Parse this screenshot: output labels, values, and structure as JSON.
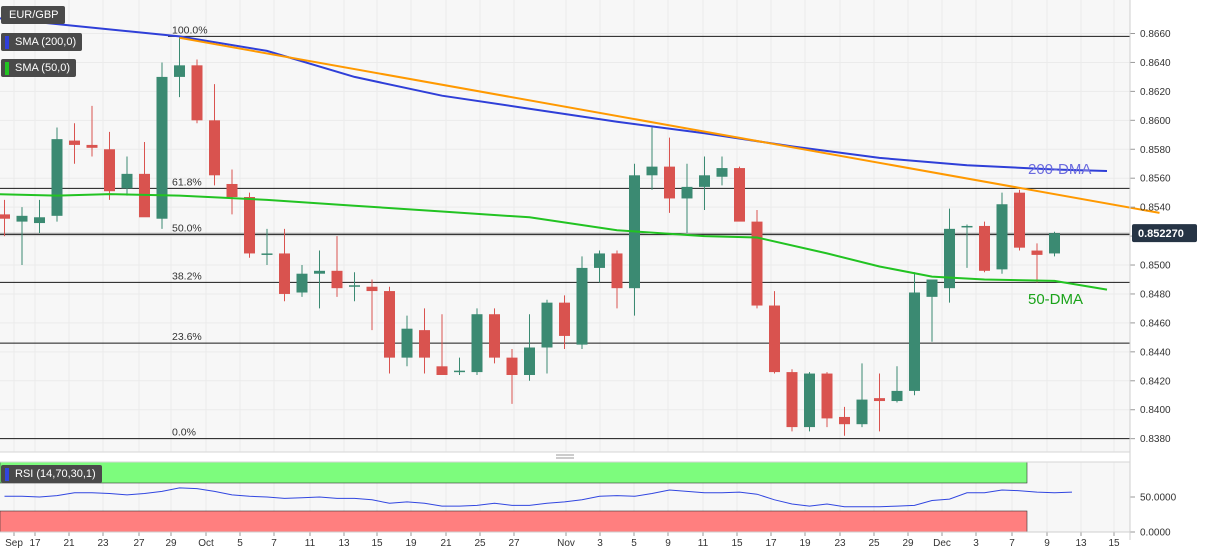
{
  "legend": {
    "symbol": "EUR/GBP",
    "sma200": "SMA (200,0)",
    "sma50": "SMA (50,0)",
    "sma200_color": "#2f3fd8",
    "sma50_color": "#22c322"
  },
  "price_label": "0.852270",
  "rsi_label": "RSI (14,70,30,1)",
  "colors": {
    "up": "#3b8a72",
    "down": "#d9534f",
    "trendline": "#ff9900",
    "rsi_overbought": "#7dfc7d",
    "rsi_oversold": "#ff7f7f",
    "rsi_line": "#3146e0"
  },
  "chart_data": [
    {
      "type": "candlestick",
      "title": "EUR/GBP",
      "ylim": [
        0.837,
        0.868
      ],
      "y_ticks": [
        "0.8660",
        "0.8640",
        "0.8620",
        "0.8600",
        "0.8580",
        "0.8560",
        "0.8540",
        "0.8520",
        "0.8500",
        "0.8480",
        "0.8460",
        "0.8440",
        "0.8420",
        "0.8400",
        "0.8380"
      ],
      "x_ticks": [
        "Sep",
        "17",
        "21",
        "23",
        "27",
        "29",
        "Oct",
        "5",
        "7",
        "11",
        "13",
        "15",
        "19",
        "21",
        "25",
        "27",
        "Nov",
        "3",
        "5",
        "9",
        "11",
        "15",
        "17",
        "19",
        "23",
        "25",
        "29",
        "Dec",
        "3",
        "7",
        "9",
        "13",
        "15"
      ],
      "candles": [
        {
          "o": 0.8535,
          "h": 0.8545,
          "l": 0.852,
          "c": 0.8532
        },
        {
          "o": 0.853,
          "h": 0.854,
          "l": 0.85,
          "c": 0.8534
        },
        {
          "o": 0.8529,
          "h": 0.8545,
          "l": 0.8522,
          "c": 0.8533
        },
        {
          "o": 0.8534,
          "h": 0.8595,
          "l": 0.853,
          "c": 0.8587
        },
        {
          "o": 0.8586,
          "h": 0.8598,
          "l": 0.857,
          "c": 0.8583
        },
        {
          "o": 0.8583,
          "h": 0.861,
          "l": 0.8575,
          "c": 0.8581
        },
        {
          "o": 0.858,
          "h": 0.8592,
          "l": 0.8545,
          "c": 0.8551
        },
        {
          "o": 0.8553,
          "h": 0.8575,
          "l": 0.8548,
          "c": 0.8563
        },
        {
          "o": 0.8563,
          "h": 0.8585,
          "l": 0.8535,
          "c": 0.8533
        },
        {
          "o": 0.8532,
          "h": 0.864,
          "l": 0.8525,
          "c": 0.863
        },
        {
          "o": 0.863,
          "h": 0.8658,
          "l": 0.8616,
          "c": 0.8638
        },
        {
          "o": 0.8638,
          "h": 0.8642,
          "l": 0.8598,
          "c": 0.86
        },
        {
          "o": 0.86,
          "h": 0.8625,
          "l": 0.8555,
          "c": 0.8562
        },
        {
          "o": 0.8556,
          "h": 0.8566,
          "l": 0.8535,
          "c": 0.8547
        },
        {
          "o": 0.8547,
          "h": 0.855,
          "l": 0.8505,
          "c": 0.8508
        },
        {
          "o": 0.8508,
          "h": 0.8525,
          "l": 0.85,
          "c": 0.8508
        },
        {
          "o": 0.8508,
          "h": 0.8525,
          "l": 0.8475,
          "c": 0.848
        },
        {
          "o": 0.8481,
          "h": 0.85,
          "l": 0.8478,
          "c": 0.8494
        },
        {
          "o": 0.8494,
          "h": 0.851,
          "l": 0.847,
          "c": 0.8496
        },
        {
          "o": 0.8496,
          "h": 0.852,
          "l": 0.8478,
          "c": 0.8484
        },
        {
          "o": 0.8485,
          "h": 0.8495,
          "l": 0.8475,
          "c": 0.8486
        },
        {
          "o": 0.8485,
          "h": 0.849,
          "l": 0.8455,
          "c": 0.8482
        },
        {
          "o": 0.8482,
          "h": 0.8485,
          "l": 0.8425,
          "c": 0.8436
        },
        {
          "o": 0.8436,
          "h": 0.8465,
          "l": 0.843,
          "c": 0.8456
        },
        {
          "o": 0.8455,
          "h": 0.847,
          "l": 0.8425,
          "c": 0.8436
        },
        {
          "o": 0.843,
          "h": 0.8466,
          "l": 0.8426,
          "c": 0.8424
        },
        {
          "o": 0.8426,
          "h": 0.8436,
          "l": 0.8424,
          "c": 0.8427
        },
        {
          "o": 0.8426,
          "h": 0.847,
          "l": 0.8424,
          "c": 0.8466
        },
        {
          "o": 0.8466,
          "h": 0.847,
          "l": 0.8432,
          "c": 0.8436
        },
        {
          "o": 0.8436,
          "h": 0.8442,
          "l": 0.8404,
          "c": 0.8424
        },
        {
          "o": 0.8424,
          "h": 0.8466,
          "l": 0.842,
          "c": 0.8443
        },
        {
          "o": 0.8443,
          "h": 0.8476,
          "l": 0.8425,
          "c": 0.8474
        },
        {
          "o": 0.8474,
          "h": 0.8479,
          "l": 0.8442,
          "c": 0.8451
        },
        {
          "o": 0.8445,
          "h": 0.8506,
          "l": 0.8442,
          "c": 0.8498
        },
        {
          "o": 0.8498,
          "h": 0.851,
          "l": 0.8488,
          "c": 0.8508
        },
        {
          "o": 0.8508,
          "h": 0.851,
          "l": 0.847,
          "c": 0.8484
        },
        {
          "o": 0.8484,
          "h": 0.857,
          "l": 0.8465,
          "c": 0.8562
        },
        {
          "o": 0.8562,
          "h": 0.8595,
          "l": 0.8552,
          "c": 0.8568
        },
        {
          "o": 0.8568,
          "h": 0.8588,
          "l": 0.8536,
          "c": 0.8546
        },
        {
          "o": 0.8546,
          "h": 0.857,
          "l": 0.8522,
          "c": 0.8554
        },
        {
          "o": 0.8554,
          "h": 0.8575,
          "l": 0.8538,
          "c": 0.8562
        },
        {
          "o": 0.8561,
          "h": 0.8575,
          "l": 0.8555,
          "c": 0.8567
        },
        {
          "o": 0.8567,
          "h": 0.8568,
          "l": 0.8532,
          "c": 0.853
        },
        {
          "o": 0.853,
          "h": 0.8538,
          "l": 0.847,
          "c": 0.8472
        },
        {
          "o": 0.8472,
          "h": 0.8482,
          "l": 0.8425,
          "c": 0.8426
        },
        {
          "o": 0.8426,
          "h": 0.8428,
          "l": 0.8385,
          "c": 0.8388
        },
        {
          "o": 0.8388,
          "h": 0.8426,
          "l": 0.8385,
          "c": 0.8425
        },
        {
          "o": 0.8425,
          "h": 0.8426,
          "l": 0.8388,
          "c": 0.8394
        },
        {
          "o": 0.8395,
          "h": 0.8402,
          "l": 0.8382,
          "c": 0.839
        },
        {
          "o": 0.839,
          "h": 0.8432,
          "l": 0.8388,
          "c": 0.8407
        },
        {
          "o": 0.8408,
          "h": 0.8425,
          "l": 0.8385,
          "c": 0.8406
        },
        {
          "o": 0.8406,
          "h": 0.843,
          "l": 0.8405,
          "c": 0.8413
        },
        {
          "o": 0.8413,
          "h": 0.8495,
          "l": 0.841,
          "c": 0.8481
        },
        {
          "o": 0.8478,
          "h": 0.849,
          "l": 0.8447,
          "c": 0.849
        },
        {
          "o": 0.8484,
          "h": 0.8539,
          "l": 0.8474,
          "c": 0.8525
        },
        {
          "o": 0.8526,
          "h": 0.8528,
          "l": 0.8498,
          "c": 0.8527
        },
        {
          "o": 0.8527,
          "h": 0.853,
          "l": 0.8495,
          "c": 0.8496
        },
        {
          "o": 0.8497,
          "h": 0.855,
          "l": 0.8494,
          "c": 0.8542
        },
        {
          "o": 0.855,
          "h": 0.8552,
          "l": 0.851,
          "c": 0.8512
        },
        {
          "o": 0.851,
          "h": 0.8515,
          "l": 0.8488,
          "c": 0.8507
        },
        {
          "o": 0.8508,
          "h": 0.8523,
          "l": 0.8506,
          "c": 0.8522
        }
      ],
      "sma200": [
        [
          -4,
          0.8675
        ],
        [
          10,
          0.8658
        ],
        [
          15,
          0.8648
        ],
        [
          20,
          0.863
        ],
        [
          25,
          0.8617
        ],
        [
          30,
          0.8608
        ],
        [
          35,
          0.8599
        ],
        [
          40,
          0.8591
        ],
        [
          45,
          0.8582
        ],
        [
          50,
          0.8574
        ],
        [
          55,
          0.8569
        ],
        [
          60,
          0.8566
        ],
        [
          63,
          0.8565
        ]
      ],
      "sma50": [
        [
          -4,
          0.855
        ],
        [
          3,
          0.8548
        ],
        [
          6,
          0.8549
        ],
        [
          10,
          0.8548
        ],
        [
          15,
          0.8545
        ],
        [
          20,
          0.8541
        ],
        [
          25,
          0.8537
        ],
        [
          30,
          0.8533
        ],
        [
          35,
          0.8524
        ],
        [
          40,
          0.852
        ],
        [
          43,
          0.8519
        ],
        [
          47,
          0.8508
        ],
        [
          50,
          0.8499
        ],
        [
          53,
          0.8492
        ],
        [
          56,
          0.849
        ],
        [
          60,
          0.8489
        ],
        [
          63,
          0.8483
        ]
      ],
      "trendline": [
        [
          10,
          0.8657
        ],
        [
          66,
          0.8536
        ]
      ],
      "fibonacci": [
        {
          "label": "100.0%",
          "value": 0.8658
        },
        {
          "label": "61.8%",
          "value": 0.8553
        },
        {
          "label": "50.0%",
          "value": 0.8521
        },
        {
          "label": "38.2%",
          "value": 0.8488
        },
        {
          "label": "23.6%",
          "value": 0.8446
        },
        {
          "label": "0.0%",
          "value": 0.838
        }
      ],
      "annotations": [
        {
          "text": "200-DMA",
          "color": "#6b6bdf"
        },
        {
          "text": "50-DMA",
          "color": "#1aa31a"
        }
      ]
    },
    {
      "type": "line",
      "title": "RSI (14,70,30,1)",
      "ylim": [
        0,
        100
      ],
      "y_ticks": [
        "50.0000",
        "0.0000"
      ],
      "bands": [
        {
          "from": 70,
          "to": 100,
          "label": "overbought"
        },
        {
          "from": 0,
          "to": 30,
          "label": "oversold"
        }
      ],
      "values": [
        51,
        51,
        50,
        52,
        56,
        56,
        55,
        53,
        55,
        58,
        63,
        62,
        58,
        53,
        51,
        50,
        48,
        49,
        50,
        48,
        48,
        46,
        41,
        43,
        41,
        37,
        37,
        38,
        41,
        38,
        38,
        41,
        43,
        46,
        51,
        52,
        51,
        55,
        60,
        58,
        56,
        56,
        57,
        54,
        46,
        40,
        37,
        40,
        36,
        36,
        36,
        37,
        38,
        45,
        47,
        56,
        56,
        60,
        59,
        57,
        56,
        57
      ]
    }
  ]
}
